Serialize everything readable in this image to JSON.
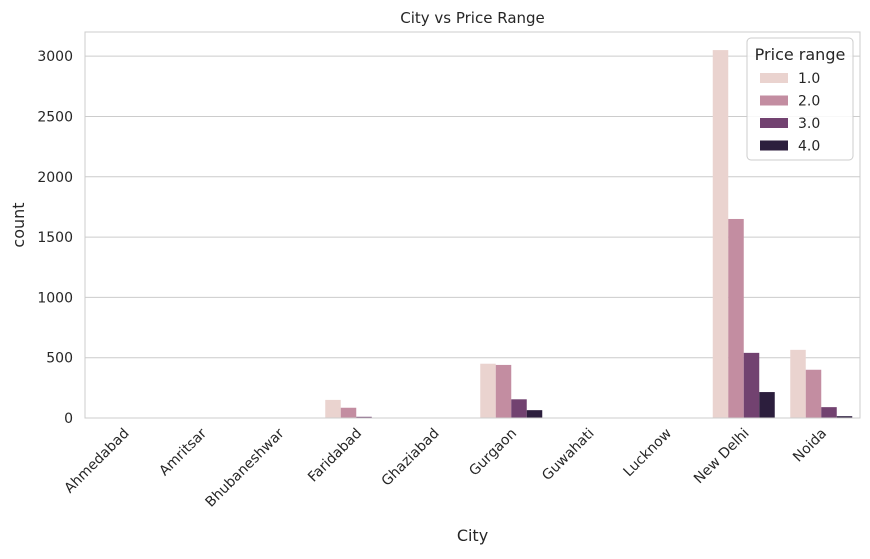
{
  "chart_data": {
    "type": "bar",
    "title": "City vs Price Range",
    "xlabel": "City",
    "ylabel": "count",
    "categories": [
      "Ahmedabad",
      "Amritsar",
      "Bhubaneshwar",
      "Faridabad",
      "Ghaziabad",
      "Gurgaon",
      "Guwahati",
      "Lucknow",
      "New Delhi",
      "Noida"
    ],
    "ylim": [
      0,
      3200
    ],
    "yticks": [
      0,
      500,
      1000,
      1500,
      2000,
      2500,
      3000
    ],
    "grid": "horizontal",
    "legend": {
      "title": "Price range",
      "position": "top-right"
    },
    "series": [
      {
        "name": "1.0",
        "color": "#ead3cf",
        "values": [
          0,
          0,
          0,
          150,
          0,
          450,
          0,
          0,
          3050,
          565
        ]
      },
      {
        "name": "2.0",
        "color": "#c38da1",
        "values": [
          0,
          0,
          0,
          85,
          0,
          440,
          0,
          0,
          1650,
          400
        ]
      },
      {
        "name": "3.0",
        "color": "#724270",
        "values": [
          0,
          0,
          0,
          10,
          0,
          155,
          0,
          0,
          540,
          90
        ]
      },
      {
        "name": "4.0",
        "color": "#2c1e3d",
        "values": [
          0,
          0,
          0,
          0,
          0,
          65,
          0,
          0,
          215,
          15
        ]
      }
    ]
  }
}
